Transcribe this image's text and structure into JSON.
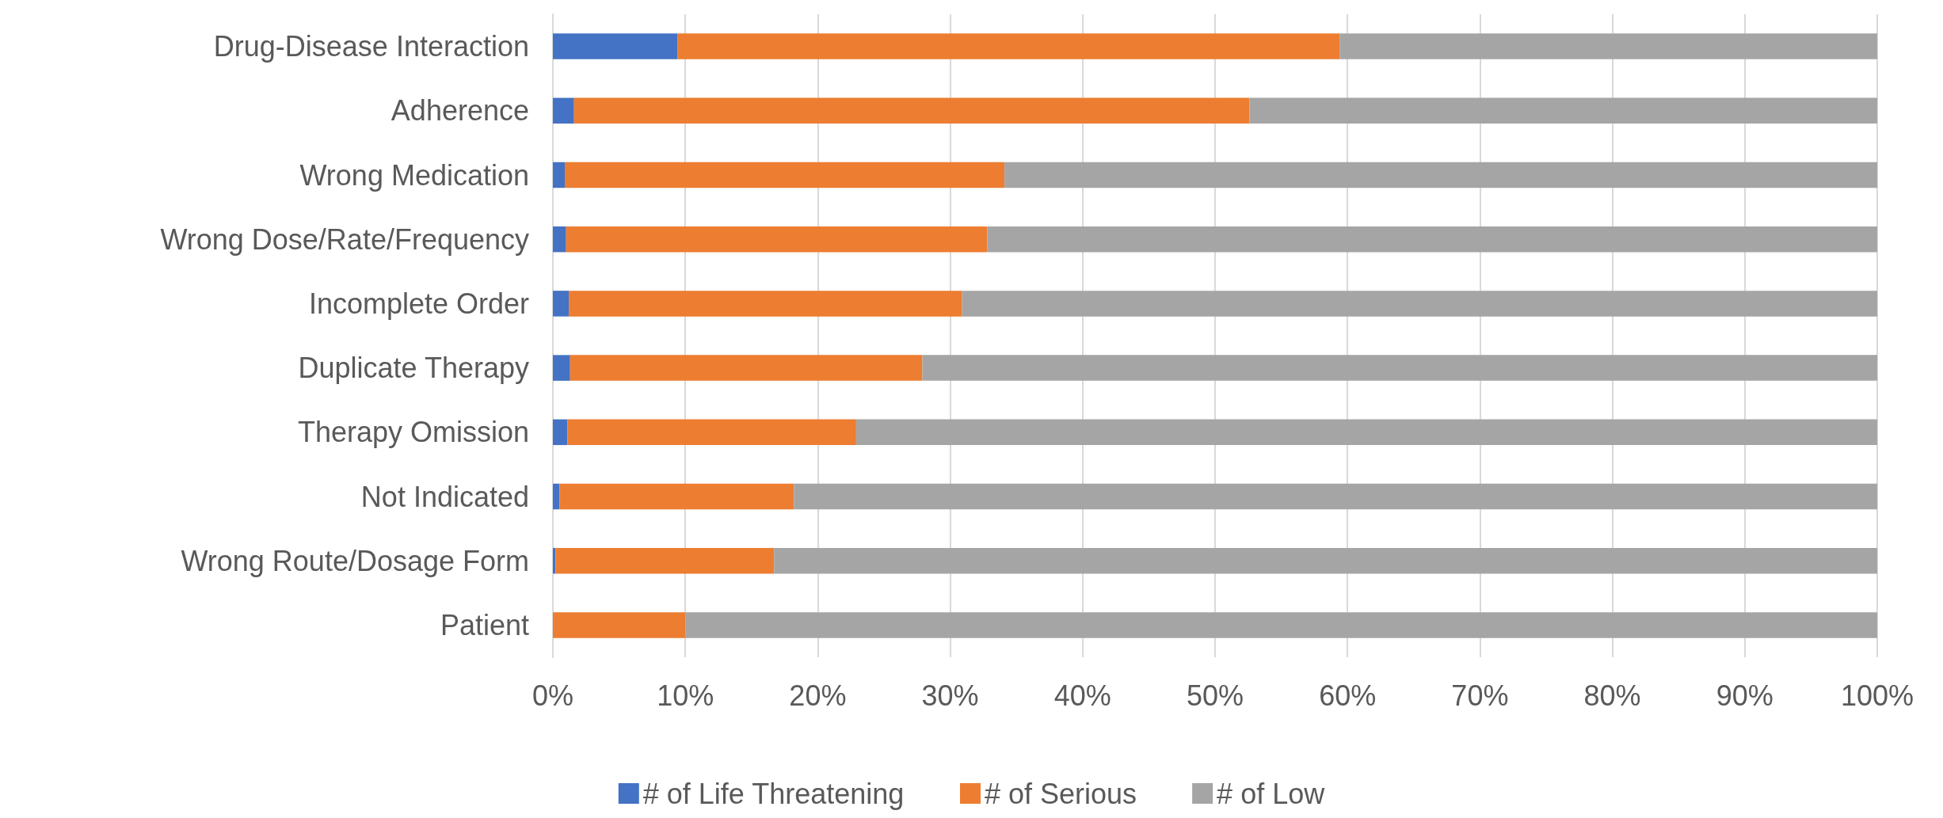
{
  "chart_data": {
    "type": "bar",
    "orientation": "horizontal",
    "stacked": true,
    "categories": [
      "Drug-Disease Interaction",
      "Adherence",
      "Wrong Medication",
      "Wrong Dose/Rate/Frequency",
      "Incomplete Order",
      "Duplicate Therapy",
      "Therapy Omission",
      "Not Indicated",
      "Wrong Route/Dosage Form",
      "Patient"
    ],
    "series": [
      {
        "name": "# of Life Threatening",
        "color": "#4472c4",
        "values": [
          9.4,
          1.6,
          0.9,
          1.0,
          1.2,
          1.3,
          1.1,
          0.5,
          0.2,
          0
        ]
      },
      {
        "name": "# of Serious",
        "color": "#ed7d31",
        "values": [
          50.0,
          51.0,
          33.2,
          31.8,
          29.7,
          26.6,
          21.8,
          17.7,
          16.5,
          10.0
        ]
      },
      {
        "name": "# of Low",
        "color": "#a5a5a5",
        "values": [
          40.6,
          47.4,
          65.9,
          67.2,
          69.1,
          72.1,
          77.1,
          81.8,
          83.3,
          90.0
        ]
      }
    ],
    "xlim": [
      0,
      100
    ],
    "xticks": [
      {
        "value": 0,
        "label": "0%"
      },
      {
        "value": 10,
        "label": "10%"
      },
      {
        "value": 20,
        "label": "20%"
      },
      {
        "value": 30,
        "label": "30%"
      },
      {
        "value": 40,
        "label": "40%"
      },
      {
        "value": 50,
        "label": "50%"
      },
      {
        "value": 60,
        "label": "60%"
      },
      {
        "value": 70,
        "label": "70%"
      },
      {
        "value": 80,
        "label": "80%"
      },
      {
        "value": 90,
        "label": "90%"
      },
      {
        "value": 100,
        "label": "100%"
      }
    ],
    "grid": "x",
    "legend": "bottom"
  }
}
